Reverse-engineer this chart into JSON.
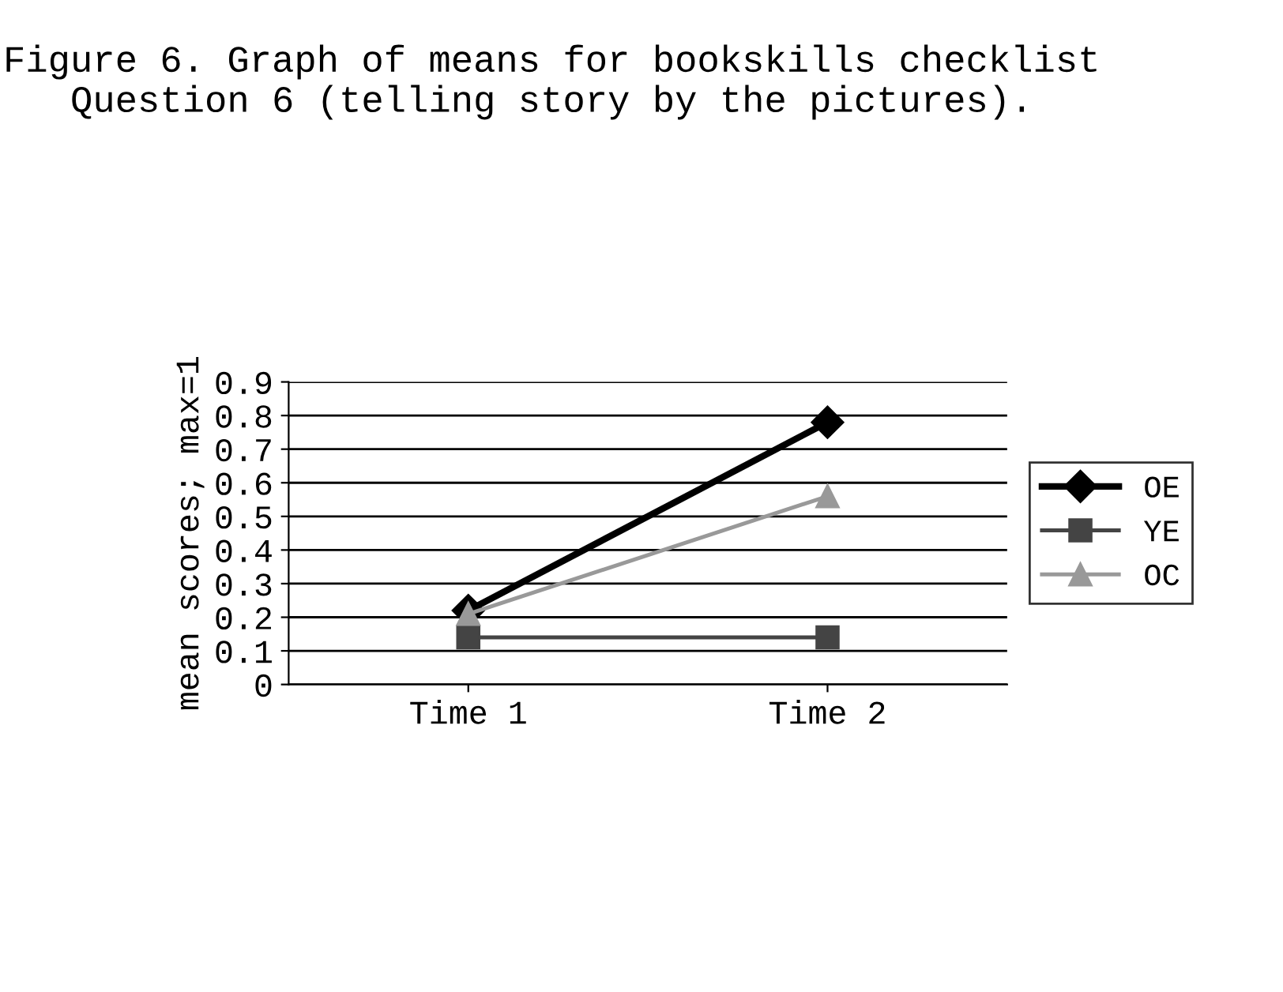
{
  "chart_data": {
    "type": "line",
    "title": "Figure 6. Graph of means for bookskills checklist Question 6 (telling story by the pictures).",
    "ylabel": "mean scores; max=1",
    "categories": [
      "Time 1",
      "Time 2"
    ],
    "series": [
      {
        "name": "OE",
        "color": "#000000",
        "values": [
          0.22,
          0.78
        ],
        "marker": "diamond"
      },
      {
        "name": "YE",
        "color": "#444444",
        "values": [
          0.14,
          0.14
        ],
        "marker": "square"
      },
      {
        "name": "OC",
        "color": "#999999",
        "values": [
          0.21,
          0.56
        ],
        "marker": "triangle"
      }
    ],
    "ylim": [
      0,
      0.9
    ],
    "yticks": [
      0,
      0.1,
      0.2,
      0.3,
      0.4,
      0.5,
      0.6,
      0.7,
      0.8,
      0.9
    ],
    "grid": "y",
    "legend": "right",
    "line_style": "solid"
  }
}
